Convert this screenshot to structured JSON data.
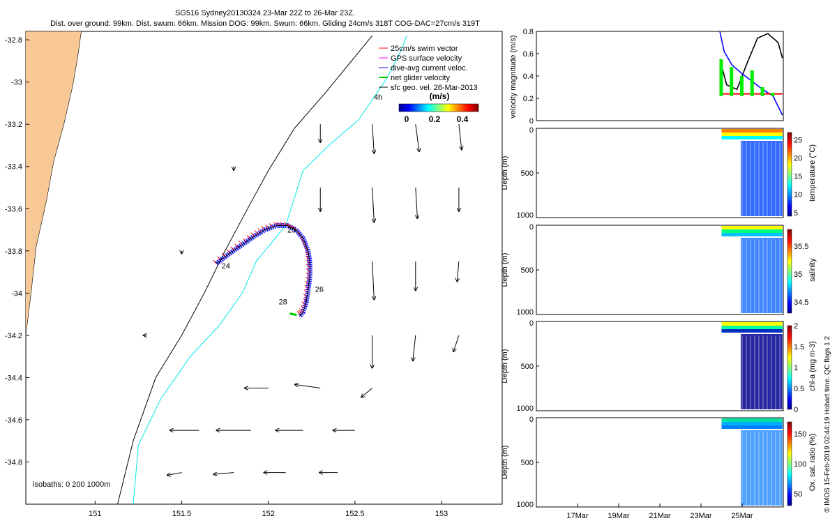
{
  "header": {
    "line1": "SG516 Sydney20130324 23-Mar 22Z to 26-Mar 23Z.",
    "line2": "Dist. over ground: 99km. Dist. swum: 66km. Mission DOG: 99km. Swum: 66km. Gliding 24cm/s 318T COG-DAC=27cm/s 319T"
  },
  "credit": "© IMOS 15-Feb-2019 02:44:19 Hobart time. QC flags 1  2",
  "colors": {
    "land": "#f8c896",
    "track_red": "#ff0000",
    "dac_blue": "#0000ff",
    "iso200": "#00e6e6",
    "net_green": "#00cc00",
    "gps_magenta": "#ff00ff"
  },
  "chart_data": [
    {
      "type": "map",
      "x_ticks": [
        "151",
        "151.5",
        "152",
        "152.5",
        "153"
      ],
      "y_ticks": [
        "-32.8",
        "-33",
        "-33.2",
        "-33.4",
        "-33.6",
        "-33.8",
        "-34",
        "-34.2",
        "-34.4",
        "-34.6",
        "-34.8"
      ],
      "xlim": [
        150.6,
        153.35
      ],
      "ylim": [
        -35.0,
        -32.76
      ],
      "legend": {
        "position": "top-right",
        "entries": [
          {
            "label": "25cm/s swim vector",
            "color": "#ff0000"
          },
          {
            "label": "GPS surface velocity",
            "color": "#ff00ff"
          },
          {
            "label": "dive-avg current veloc.",
            "color": "#0000ff"
          },
          {
            "label": "net glider velocity",
            "color": "#00cc00"
          },
          {
            "label": "sfc geo. vel. 26-Mar-2013",
            "color": "#000000"
          }
        ]
      },
      "colorbar": {
        "title": "(m/s)",
        "ticks": [
          "0",
          "0.2",
          "0.4"
        ],
        "range": [
          0,
          0.5
        ]
      },
      "isobaths_label": "isobaths: 0   200   1000m",
      "ref_vector_label": "4h",
      "day_labels": [
        {
          "text": "24",
          "lon": 151.73,
          "lat": -33.87
        },
        {
          "text": "25",
          "lon": 152.11,
          "lat": -33.7
        },
        {
          "text": "26",
          "lon": 152.27,
          "lat": -33.98
        },
        {
          "text": "28",
          "lon": 152.06,
          "lat": -34.04
        }
      ],
      "glider_track": [
        [
          151.7,
          -33.86
        ],
        [
          151.78,
          -33.81
        ],
        [
          151.85,
          -33.77
        ],
        [
          151.92,
          -33.73
        ],
        [
          151.98,
          -33.7
        ],
        [
          152.05,
          -33.68
        ],
        [
          152.11,
          -33.68
        ],
        [
          152.16,
          -33.7
        ],
        [
          152.2,
          -33.74
        ],
        [
          152.23,
          -33.8
        ],
        [
          152.24,
          -33.86
        ],
        [
          152.24,
          -33.92
        ],
        [
          152.23,
          -33.98
        ],
        [
          152.22,
          -34.04
        ],
        [
          152.2,
          -34.09
        ],
        [
          152.18,
          -34.11
        ]
      ],
      "isobath_1000": [
        [
          151.13,
          -35.0
        ],
        [
          151.22,
          -34.7
        ],
        [
          151.35,
          -34.4
        ],
        [
          151.5,
          -34.2
        ],
        [
          151.63,
          -34.0
        ],
        [
          151.75,
          -33.8
        ],
        [
          151.88,
          -33.6
        ],
        [
          152.0,
          -33.42
        ],
        [
          152.15,
          -33.22
        ],
        [
          152.33,
          -33.05
        ],
        [
          152.5,
          -32.88
        ],
        [
          152.6,
          -32.78
        ]
      ],
      "isobath_200": [
        [
          151.22,
          -35.0
        ],
        [
          151.25,
          -34.72
        ],
        [
          151.38,
          -34.5
        ],
        [
          151.55,
          -34.3
        ],
        [
          151.72,
          -34.15
        ],
        [
          151.85,
          -34.0
        ],
        [
          151.93,
          -33.85
        ],
        [
          152.0,
          -33.78
        ],
        [
          152.05,
          -33.73
        ],
        [
          152.1,
          -33.68
        ],
        [
          152.15,
          -33.55
        ],
        [
          152.2,
          -33.42
        ],
        [
          152.35,
          -33.3
        ],
        [
          152.52,
          -33.18
        ],
        [
          152.67,
          -33.0
        ],
        [
          152.75,
          -32.88
        ],
        [
          152.8,
          -32.78
        ]
      ],
      "coastline": [
        [
          150.92,
          -32.76
        ],
        [
          150.9,
          -32.88
        ],
        [
          150.87,
          -33.02
        ],
        [
          150.82,
          -33.2
        ],
        [
          150.76,
          -33.38
        ],
        [
          150.72,
          -33.56
        ],
        [
          150.66,
          -33.78
        ],
        [
          150.63,
          -34.0
        ],
        [
          150.6,
          -34.2
        ],
        [
          150.6,
          -34.45
        ],
        [
          150.58,
          -34.7
        ],
        [
          150.57,
          -35.0
        ]
      ],
      "vectors": [
        {
          "lon": 152.3,
          "lat": -33.2,
          "u": 0.0,
          "v": -0.2
        },
        {
          "lon": 152.6,
          "lat": -33.2,
          "u": 0.02,
          "v": -0.32
        },
        {
          "lon": 152.85,
          "lat": -33.2,
          "u": 0.04,
          "v": -0.3
        },
        {
          "lon": 153.1,
          "lat": -33.2,
          "u": 0.03,
          "v": -0.28
        },
        {
          "lon": 152.3,
          "lat": -33.5,
          "u": 0.0,
          "v": -0.26
        },
        {
          "lon": 152.6,
          "lat": -33.5,
          "u": 0.02,
          "v": -0.38
        },
        {
          "lon": 152.85,
          "lat": -33.5,
          "u": 0.02,
          "v": -0.34
        },
        {
          "lon": 153.1,
          "lat": -33.5,
          "u": 0.0,
          "v": -0.26
        },
        {
          "lon": 152.6,
          "lat": -33.85,
          "u": 0.02,
          "v": -0.42
        },
        {
          "lon": 152.85,
          "lat": -33.85,
          "u": 0.0,
          "v": -0.32
        },
        {
          "lon": 153.1,
          "lat": -33.85,
          "u": -0.02,
          "v": -0.22
        },
        {
          "lon": 152.6,
          "lat": -34.2,
          "u": 0.0,
          "v": -0.36
        },
        {
          "lon": 152.85,
          "lat": -34.2,
          "u": -0.03,
          "v": -0.28
        },
        {
          "lon": 153.1,
          "lat": -34.2,
          "u": -0.06,
          "v": -0.18
        },
        {
          "lon": 152.0,
          "lat": -34.45,
          "u": -0.26,
          "v": 0.0
        },
        {
          "lon": 152.3,
          "lat": -34.45,
          "u": -0.28,
          "v": 0.04
        },
        {
          "lon": 152.6,
          "lat": -34.45,
          "u": -0.12,
          "v": -0.1
        },
        {
          "lon": 151.6,
          "lat": -34.65,
          "u": -0.32,
          "v": 0.0
        },
        {
          "lon": 151.9,
          "lat": -34.65,
          "u": -0.38,
          "v": 0.0
        },
        {
          "lon": 152.2,
          "lat": -34.65,
          "u": -0.3,
          "v": 0.0
        },
        {
          "lon": 152.5,
          "lat": -34.65,
          "u": -0.24,
          "v": 0.0
        },
        {
          "lon": 151.5,
          "lat": -34.85,
          "u": -0.16,
          "v": -0.03
        },
        {
          "lon": 151.8,
          "lat": -34.85,
          "u": -0.22,
          "v": -0.02
        },
        {
          "lon": 152.1,
          "lat": -34.85,
          "u": -0.24,
          "v": 0.0
        },
        {
          "lon": 152.4,
          "lat": -34.85,
          "u": -0.2,
          "v": 0.0
        },
        {
          "lon": 151.8,
          "lat": -33.4,
          "u": 0.0,
          "v": -0.04
        },
        {
          "lon": 151.5,
          "lat": -33.8,
          "u": 0.0,
          "v": -0.03
        },
        {
          "lon": 151.3,
          "lat": -34.2,
          "u": -0.04,
          "v": 0.0
        }
      ]
    },
    {
      "type": "line",
      "ylabel": "velocity magnitude (m/s)",
      "ylim": [
        0,
        0.8
      ],
      "y_ticks": [
        "0",
        "0.2",
        "0.4",
        "0.6",
        "0.8"
      ],
      "x_date_range": [
        "2013-03-15",
        "2013-03-27"
      ],
      "series": [
        {
          "color": "#000000",
          "x": [
            "2013-03-23T22",
            "2013-03-24T06",
            "2013-03-24T18",
            "2013-03-25T06",
            "2013-03-25T18",
            "2013-03-26T06",
            "2013-03-26T18",
            "2013-03-26T23"
          ],
          "y": [
            0.55,
            0.32,
            0.28,
            0.52,
            0.74,
            0.78,
            0.7,
            0.56
          ]
        },
        {
          "color": "#0000ff",
          "x": [
            "2013-03-23T22",
            "2013-03-24T03",
            "2013-03-24T12",
            "2013-03-25T00",
            "2013-03-25T12",
            "2013-03-26T00",
            "2013-03-26T12",
            "2013-03-26T23"
          ],
          "y": [
            0.8,
            0.62,
            0.5,
            0.42,
            0.35,
            0.28,
            0.22,
            0.05
          ]
        },
        {
          "color": "#ff0000",
          "x": [
            "2013-03-23T22",
            "2013-03-26T23"
          ],
          "y": [
            0.24,
            0.24
          ]
        },
        {
          "color": "#00cc00",
          "x": [
            "2013-03-24T00",
            "2013-03-24T12",
            "2013-03-25T00",
            "2013-03-25T12",
            "2013-03-26T00",
            "2013-03-26T12"
          ],
          "y": [
            0.55,
            0.48,
            0.4,
            0.45,
            0.3,
            0.25
          ]
        }
      ]
    },
    {
      "type": "heatmap",
      "ylabel": "Depth (m)",
      "clabel": "temperature (°C)",
      "y_ticks": [
        "0",
        "500",
        "1000"
      ],
      "c_ticks": [
        "25",
        "20",
        "15",
        "10",
        "5"
      ],
      "crange": [
        4,
        27
      ]
    },
    {
      "type": "heatmap",
      "ylabel": "Depth (m)",
      "clabel": "salinity",
      "y_ticks": [
        "0",
        "500",
        "1000"
      ],
      "c_ticks": [
        "35.5",
        "35",
        "34.5"
      ],
      "crange": [
        34.3,
        35.8
      ]
    },
    {
      "type": "heatmap",
      "ylabel": "Depth (m)",
      "clabel": "chl-a (mg m-3)",
      "y_ticks": [
        "0",
        "500",
        "1000"
      ],
      "c_ticks": [
        "2",
        "1.5",
        "1",
        "0.5",
        "0"
      ],
      "crange": [
        0,
        2
      ]
    },
    {
      "type": "heatmap",
      "ylabel": "Depth (m)",
      "clabel": "Ox. sat. ratio (%)",
      "y_ticks": [
        "0",
        "500",
        "1000"
      ],
      "c_ticks": [
        "150",
        "100",
        "50"
      ],
      "crange": [
        30,
        170
      ]
    }
  ],
  "time_axis": {
    "ticks": [
      "17Mar",
      "19Mar",
      "21Mar",
      "23Mar",
      "25Mar"
    ]
  }
}
